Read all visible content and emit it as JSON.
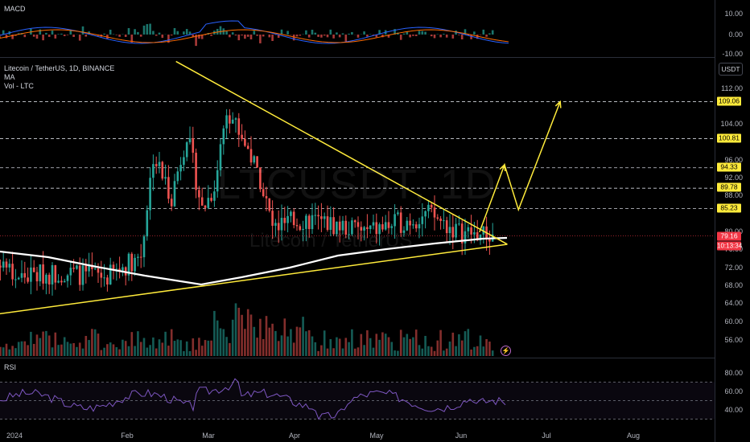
{
  "panes": {
    "macd": {
      "title": "MACD",
      "ticks": [
        "10.00",
        "0.00",
        "-10.00"
      ]
    },
    "main": {
      "symbol_line": "Litecoin / TetherUS, 1D, BINANCE",
      "indicator_ma": "MA",
      "indicator_vol": "Vol - LTC",
      "ticks": [
        "112.00",
        "104.00",
        "96.00",
        "92.00",
        "88.00",
        "80.00",
        "76.00",
        "72.00",
        "68.00",
        "64.00",
        "60.00",
        "56.00"
      ],
      "currency_button": "USDT"
    },
    "rsi": {
      "title": "RSI",
      "ticks": [
        "80.00",
        "60.00",
        "40.00"
      ]
    }
  },
  "watermark": {
    "ticker": "LTCUSDT, 1D",
    "name": "Litecoin / TetherUS"
  },
  "price_tags": [
    {
      "label": "109.06"
    },
    {
      "label": "100.81"
    },
    {
      "label": "94.33"
    },
    {
      "label": "89.78"
    },
    {
      "label": "85.23"
    }
  ],
  "last_price": {
    "value": "79.16",
    "countdown": "10:13:34"
  },
  "x_axis": [
    "2024",
    "Feb",
    "Mar",
    "Apr",
    "May",
    "Jun",
    "Jul",
    "Aug"
  ],
  "colors": {
    "up": "#26a69a",
    "down": "#ef5350",
    "trendline": "#ffeb3b",
    "ma": "#ffffff",
    "macd_line": "#2962ff",
    "signal_line": "#ff6d00",
    "rsi_line": "#7e57c2"
  },
  "chart_data": {
    "type": "candlestick",
    "symbol": "LTCUSDT",
    "interval": "1D",
    "exchange": "BINANCE",
    "horizontal_levels": [
      109.06,
      100.81,
      94.33,
      89.78,
      85.23
    ],
    "last_close": 79.16,
    "ylim": [
      52,
      116
    ],
    "triangle": {
      "upper": {
        "from": [
          "2024-02-28",
          118
        ],
        "to": [
          "2024-06-26",
          77.3
        ]
      },
      "lower": {
        "from": [
          "2023-12-17",
          61
        ],
        "to": [
          "2024-06-26",
          77.3
        ]
      }
    },
    "projection_path": [
      [
        "2024-06-16",
        80
      ],
      [
        "2024-06-25",
        95
      ],
      [
        "2024-06-30",
        85
      ],
      [
        "2024-07-15",
        109.06
      ]
    ],
    "rsi_levels": [
      70,
      50,
      30
    ]
  }
}
